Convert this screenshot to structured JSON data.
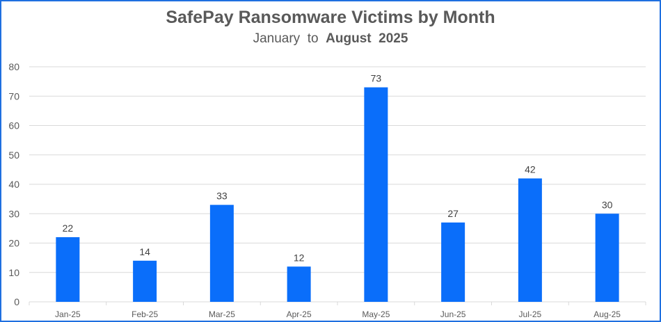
{
  "title": {
    "main": "SafePay Ransomware Victims by Month",
    "sub_part1": "January",
    "sub_part2": "to",
    "sub_part3": "August",
    "sub_part4": "2025"
  },
  "colors": {
    "bar": "#0A6EFA",
    "grid": "#D9D9D9",
    "text": "#595959",
    "frame": "#1F6FE0"
  },
  "chart_data": {
    "type": "bar",
    "title": "SafePay Ransomware Victims by Month",
    "subtitle": "January to August 2025",
    "categories": [
      "Jan-25",
      "Feb-25",
      "Mar-25",
      "Apr-25",
      "May-25",
      "Jun-25",
      "Jul-25",
      "Aug-25"
    ],
    "values": [
      22,
      14,
      33,
      12,
      73,
      27,
      42,
      30
    ],
    "yticks": [
      "0",
      "10",
      "20",
      "30",
      "40",
      "50",
      "60",
      "70",
      "80"
    ],
    "ylim": [
      0,
      80
    ],
    "xlabel": "",
    "ylabel": "",
    "grid": true,
    "legend": "none",
    "data_labels": true
  }
}
